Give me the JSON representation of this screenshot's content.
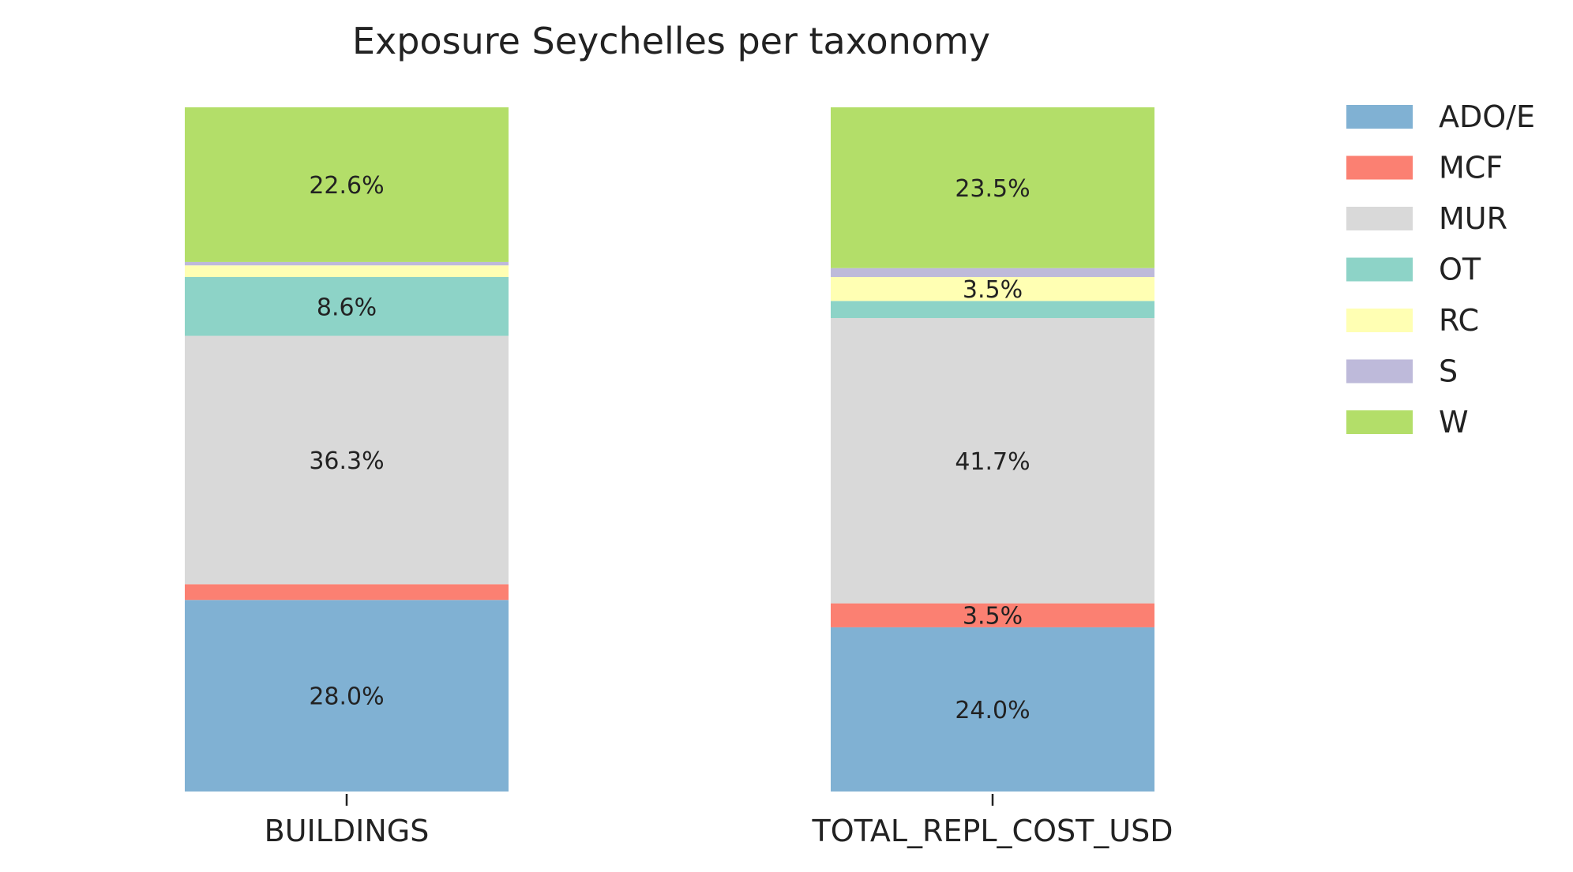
{
  "chart_data": {
    "type": "bar",
    "stacked": true,
    "normalized": true,
    "title": "Exposure Seychelles per taxonomy",
    "xlabel": "",
    "ylabel": "",
    "ylim": [
      0,
      1
    ],
    "grid": false,
    "legend_position": "right",
    "categories": [
      "BUILDINGS",
      "TOTAL_REPL_COST_USD"
    ],
    "series": [
      {
        "name": "ADO/E",
        "color": "#80b1d3",
        "values": [
          0.28,
          0.24
        ],
        "labels": [
          "28.0%",
          "24.0%"
        ]
      },
      {
        "name": "MCF",
        "color": "#fb8072",
        "values": [
          0.023,
          0.035
        ],
        "labels": [
          "",
          "3.5%"
        ]
      },
      {
        "name": "MUR",
        "color": "#d9d9d9",
        "values": [
          0.363,
          0.417
        ],
        "labels": [
          "36.3%",
          "41.7%"
        ]
      },
      {
        "name": "OT",
        "color": "#8dd3c7",
        "values": [
          0.086,
          0.025
        ],
        "labels": [
          "8.6%",
          ""
        ]
      },
      {
        "name": "RC",
        "color": "#ffffb3",
        "values": [
          0.017,
          0.035
        ],
        "labels": [
          "",
          "3.5%"
        ]
      },
      {
        "name": "S",
        "color": "#bebada",
        "values": [
          0.005,
          0.013
        ],
        "labels": [
          "",
          ""
        ]
      },
      {
        "name": "W",
        "color": "#b3de69",
        "values": [
          0.226,
          0.235
        ],
        "labels": [
          "22.6%",
          "23.5%"
        ]
      }
    ]
  }
}
